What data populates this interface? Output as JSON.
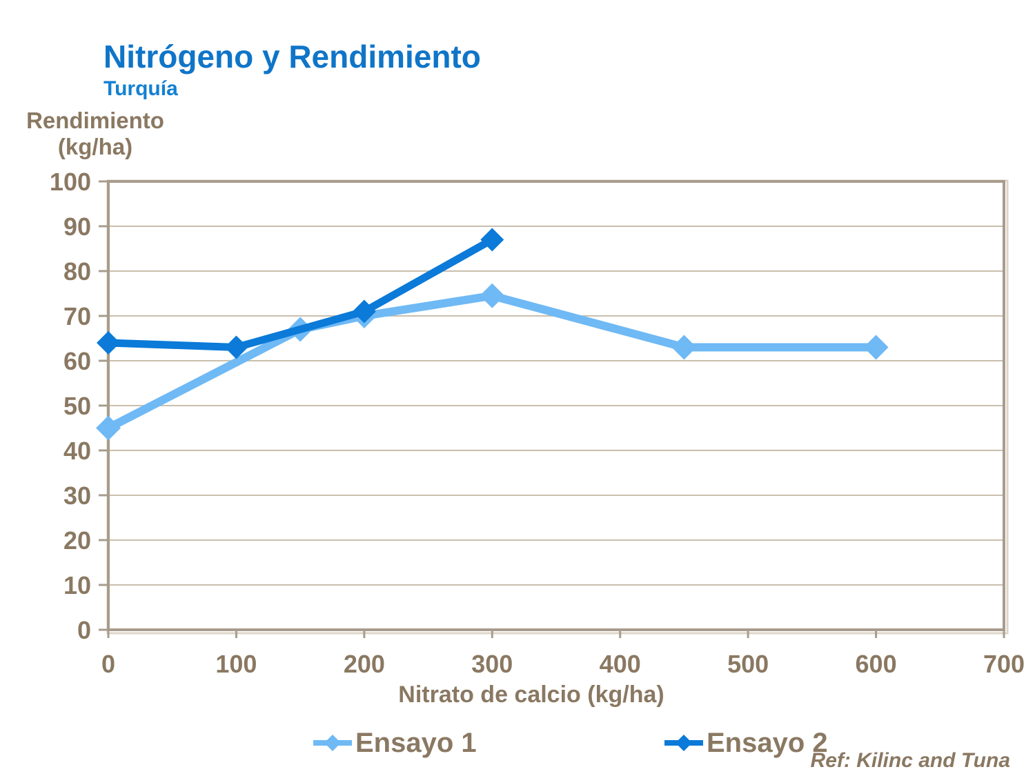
{
  "header": {
    "title": "Nitrógeno y Rendimiento",
    "subtitle": "Turquía"
  },
  "footer": {
    "reference": "Ref: Kilinc and Tuna"
  },
  "colors": {
    "title_blue": "#0F75C8",
    "axis_text": "#8A7862",
    "gridline": "#C9BFAE",
    "plot_border": "#A89C8C",
    "background": "#FFFFFF",
    "series1": "#6FB9F5",
    "series2": "#0B7AD8"
  },
  "chart_data": {
    "type": "line",
    "title": "Nitrógeno y Rendimiento",
    "subtitle": "Turquía",
    "xlabel": "Nitrato de calcio (kg/ha)",
    "ylabel": "Rendimiento (kg/ha)",
    "ylabel_lines": [
      "Rendimiento",
      "(kg/ha)"
    ],
    "xlim": [
      0,
      700
    ],
    "ylim": [
      0,
      100
    ],
    "x_ticks": [
      0,
      100,
      200,
      300,
      400,
      500,
      600,
      700
    ],
    "y_ticks": [
      0,
      10,
      20,
      30,
      40,
      50,
      60,
      70,
      80,
      90,
      100
    ],
    "grid": "horizontal",
    "legend_position": "bottom",
    "series": [
      {
        "name": "Ensayo 1",
        "color": "#6FB9F5",
        "marker": "diamond",
        "points": [
          [
            0,
            45
          ],
          [
            150,
            67
          ],
          [
            200,
            70
          ],
          [
            300,
            74.5
          ],
          [
            450,
            63
          ],
          [
            600,
            63
          ]
        ]
      },
      {
        "name": "Ensayo 2",
        "color": "#0B7AD8",
        "marker": "diamond",
        "points": [
          [
            0,
            64
          ],
          [
            100,
            63
          ],
          [
            200,
            71
          ],
          [
            300,
            87
          ]
        ]
      }
    ]
  }
}
